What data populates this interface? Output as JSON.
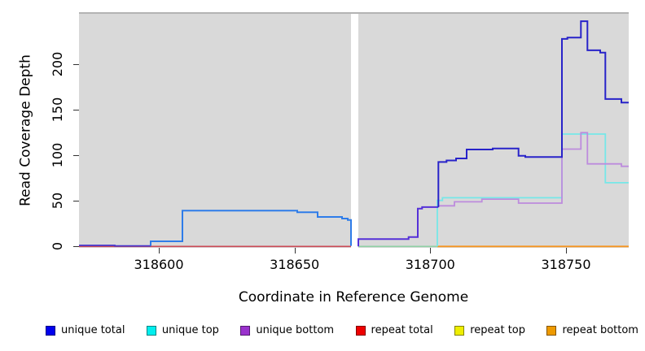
{
  "figure": {
    "x_title": "Coordinate in Reference Genome",
    "y_title": "Read Coverage Depth"
  },
  "legend": {
    "items": [
      {
        "label": "unique total",
        "color": "#0000ee"
      },
      {
        "label": "unique top",
        "color": "#00eeee"
      },
      {
        "label": "unique bottom",
        "color": "#9a32cd"
      },
      {
        "label": "repeat total",
        "color": "#ee0000"
      },
      {
        "label": "repeat top",
        "color": "#eeee00"
      },
      {
        "label": "repeat bottom",
        "color": "#ee9a00"
      }
    ]
  },
  "chart_data": {
    "type": "line",
    "step": true,
    "title": "",
    "xlabel": "Coordinate in Reference Genome",
    "ylabel": "Read Coverage Depth",
    "xlim": [
      318570.6,
      318773.1
    ],
    "ylim": [
      0,
      257.4
    ],
    "x_ticks": [
      318600,
      318650,
      318700,
      318750
    ],
    "y_ticks": [
      0,
      50,
      100,
      150,
      200
    ],
    "panel_background": "#d9d9d9",
    "masked_region": {
      "x_start": 318670.8,
      "x_end": 318673.5
    },
    "series": [
      {
        "name": "repeat total",
        "color": "#cb4a56",
        "width": 1.6,
        "points": [
          [
            318570.6,
            0
          ],
          [
            318670.8,
            0
          ]
        ]
      },
      {
        "name": "unique top (zero segment)",
        "color": "#8fd0a5",
        "width": 1.6,
        "points": [
          [
            318673.5,
            0
          ],
          [
            318702.6,
            0
          ]
        ]
      },
      {
        "name": "repeat bottom",
        "color": "#f59420",
        "width": 1.8,
        "points": [
          [
            318702.6,
            0
          ],
          [
            318773.1,
            0
          ]
        ]
      },
      {
        "name": "unique top",
        "color": "#76e7e8",
        "width": 1.8,
        "points": [
          [
            318702.6,
            0
          ],
          [
            318702.6,
            50.5
          ],
          [
            318704.5,
            53.5
          ],
          [
            318748.5,
            123.5
          ],
          [
            318764.5,
            70
          ],
          [
            318773.1,
            70
          ]
        ]
      },
      {
        "name": "unique bottom",
        "color": "#bd8bdd",
        "width": 1.8,
        "points": [
          [
            318703,
            43.2
          ],
          [
            318703,
            44.6
          ],
          [
            318708.9,
            49
          ],
          [
            318719,
            52
          ],
          [
            318732.5,
            47.6
          ],
          [
            318748.5,
            107
          ],
          [
            318755.5,
            125
          ],
          [
            318757.9,
            90.7
          ],
          [
            318770.4,
            88
          ],
          [
            318773.1,
            88
          ]
        ]
      },
      {
        "name": "unique total (left low segment)",
        "color": "#4636cf",
        "width": 1.8,
        "points": [
          [
            318570.6,
            1.2
          ],
          [
            318583.8,
            0.6
          ],
          [
            318597,
            0.6
          ]
        ]
      },
      {
        "name": "unique total (left region)",
        "color": "#2e7ce9",
        "width": 2,
        "points": [
          [
            318597,
            0.6
          ],
          [
            318597,
            5.6
          ],
          [
            318608.7,
            39.4
          ],
          [
            318651,
            37.5
          ],
          [
            318658.5,
            32.4
          ],
          [
            318667.5,
            30.6
          ],
          [
            318669.6,
            29.1
          ],
          [
            318670.8,
            0.6
          ]
        ]
      },
      {
        "name": "unique total + unique bottom (right entry)",
        "color": "#5531d8",
        "width": 2,
        "points": [
          [
            318673.5,
            0
          ],
          [
            318673.5,
            8
          ],
          [
            318692,
            10.4
          ],
          [
            318695.4,
            41.6
          ],
          [
            318697,
            43.2
          ],
          [
            318703,
            43.2
          ]
        ]
      },
      {
        "name": "unique total",
        "color": "#2823c9",
        "width": 2,
        "points": [
          [
            318703,
            43.2
          ],
          [
            318703,
            92.8
          ],
          [
            318706,
            94.5
          ],
          [
            318709.5,
            96.7
          ],
          [
            318713.4,
            106.5
          ],
          [
            318723,
            107.7
          ],
          [
            318732.5,
            99.6
          ],
          [
            318735,
            98.2
          ],
          [
            318748.5,
            228
          ],
          [
            318750.5,
            229.5
          ],
          [
            318755.5,
            247.5
          ],
          [
            318757.9,
            215.5
          ],
          [
            318762.6,
            213
          ],
          [
            318764.5,
            162
          ],
          [
            318770.4,
            158
          ],
          [
            318773.1,
            158
          ]
        ]
      }
    ]
  }
}
